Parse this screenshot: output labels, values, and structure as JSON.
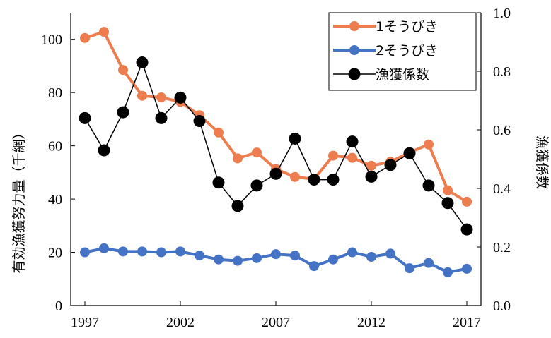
{
  "chart_data": {
    "type": "line",
    "x": [
      1997,
      1998,
      1999,
      2000,
      2001,
      2002,
      2003,
      2004,
      2005,
      2006,
      2007,
      2008,
      2009,
      2010,
      2011,
      2012,
      2013,
      2014,
      2015,
      2016,
      2017
    ],
    "xticks": [
      "1997",
      "2002",
      "2007",
      "2012",
      "2017"
    ],
    "xlim": [
      1997,
      2017
    ],
    "ylabel_left": "有効漁獲努力量（千網）",
    "ylim_left": [
      0,
      110
    ],
    "yticks_left": [
      "0",
      "20",
      "40",
      "60",
      "80",
      "100"
    ],
    "ylabel_right": "漁獲係数",
    "ylim_right": [
      0.0,
      1.0
    ],
    "yticks_right": [
      "0.0",
      "0.2",
      "0.4",
      "0.6",
      "0.8",
      "1.0"
    ],
    "legend_position": "top-right",
    "grid": false,
    "series": [
      {
        "name": "1そうびき",
        "axis": "left",
        "color": "#ED7D4F",
        "values": [
          100.5,
          102.8,
          88.5,
          78.8,
          78.2,
          76.5,
          71.5,
          65.0,
          55.3,
          57.5,
          51.3,
          48.3,
          47.5,
          56.3,
          55.5,
          52.5,
          54.0,
          57.5,
          60.5,
          43.3,
          39.0
        ]
      },
      {
        "name": "2そうびき",
        "axis": "left",
        "color": "#4472C4",
        "values": [
          20.0,
          21.5,
          20.3,
          20.3,
          20.0,
          20.3,
          18.8,
          17.3,
          16.8,
          17.8,
          19.3,
          18.8,
          14.8,
          17.3,
          20.0,
          18.3,
          19.5,
          14.0,
          16.0,
          12.5,
          13.8
        ]
      },
      {
        "name": "漁獲係数",
        "axis": "right",
        "color": "#000000",
        "values": [
          0.64,
          0.53,
          0.66,
          0.83,
          0.64,
          0.71,
          0.63,
          0.42,
          0.34,
          0.41,
          0.45,
          0.57,
          0.43,
          0.43,
          0.56,
          0.44,
          0.48,
          0.52,
          0.41,
          0.35,
          0.26
        ]
      }
    ]
  }
}
